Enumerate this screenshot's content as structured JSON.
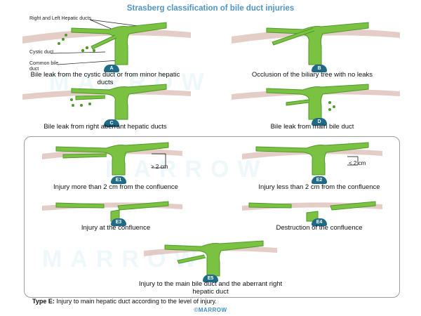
{
  "title": "Strasberg classification of bile duct injuries",
  "labels": {
    "hepatic": "Right and Left Hepatic ducts",
    "cystic": "Cystic duct",
    "common": "Common bile duct"
  },
  "watermark": "MARROW",
  "panels": [
    {
      "id": "A",
      "caption": "Bile leak from the cystic duct or from minor hepatic ducts"
    },
    {
      "id": "B",
      "caption": "Occlusion of the biliary tree with no leaks"
    },
    {
      "id": "C",
      "caption": "Bile leak from right aberrant hepatic ducts"
    },
    {
      "id": "D",
      "caption": "Bile leak from main bile duct"
    },
    {
      "id": "E1",
      "caption": "Injury more than 2 cm from the confluence",
      "dimension": "> 2 cm"
    },
    {
      "id": "E2",
      "caption": "Injury less than 2 cm from the confluence",
      "dimension": "< 2 cm"
    },
    {
      "id": "E3",
      "caption": "Injury at the confluence"
    },
    {
      "id": "E4",
      "caption": "Destruction of the confluence"
    },
    {
      "id": "E5",
      "caption": "Injury to the main bile duct and the aberrant right hepatic duct"
    }
  ],
  "footnote": {
    "bold": "Type E:",
    "text": " Injury to main hepatic duct according to the level of injury."
  },
  "copyright": "©MARROW",
  "colors": {
    "duct": "#7cc242",
    "duct_dark": "#4d9a2a",
    "liver": "#d9b8ae",
    "marker": "#1f6a86",
    "title": "#4f95c6"
  }
}
